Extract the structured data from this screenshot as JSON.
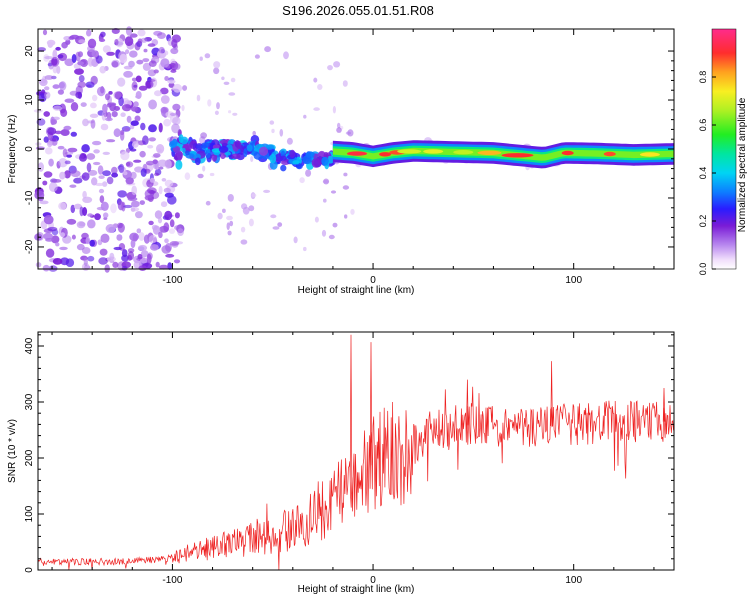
{
  "title": "S196.2026.055.01.51.R08",
  "chart_data": [
    {
      "type": "heatmap",
      "name": "spectrogram",
      "xlabel": "Height of straight line (km)",
      "ylabel": "Frequency (Hz)",
      "xlim": [
        -167,
        150
      ],
      "ylim": [
        -24.5,
        24.5
      ],
      "xticks": [
        -100,
        0,
        100
      ],
      "yticks": [
        20,
        10,
        0,
        -10,
        -20
      ],
      "xtick_labels": [
        "-100",
        "0",
        "100"
      ],
      "ytick_labels": [
        "20",
        "10",
        "0",
        "-10",
        "-20"
      ],
      "grid": false,
      "colorbar": {
        "label": "Normalized spectral amplitude",
        "range": [
          0,
          1
        ],
        "ticks": [
          0.0,
          0.2,
          0.4,
          0.6,
          0.8
        ],
        "tick_labels": [
          "0.0",
          "0.2",
          "0.4",
          "0.6",
          "0.8"
        ]
      },
      "regions": [
        {
          "x_range": [
            -167,
            -100
          ],
          "description_value": "broadband noise",
          "amplitude": [
            0.05,
            0.22
          ]
        },
        {
          "x_range": [
            -100,
            -20
          ],
          "center_hz": [
            -5,
            5
          ],
          "amplitude": [
            0.15,
            0.4
          ]
        },
        {
          "x_range": [
            -20,
            150
          ],
          "center_hz": 0,
          "amplitude": [
            0.3,
            1.0
          ]
        }
      ],
      "ridge": [
        {
          "x": -20,
          "f": -0.5
        },
        {
          "x": -10,
          "f": -0.8
        },
        {
          "x": 0,
          "f": -1.5
        },
        {
          "x": 10,
          "f": -0.8
        },
        {
          "x": 20,
          "f": -0.4
        },
        {
          "x": 40,
          "f": -0.6
        },
        {
          "x": 60,
          "f": -0.8
        },
        {
          "x": 75,
          "f": -1.4
        },
        {
          "x": 85,
          "f": -1.8
        },
        {
          "x": 95,
          "f": -0.8
        },
        {
          "x": 110,
          "f": -0.9
        },
        {
          "x": 130,
          "f": -1.2
        },
        {
          "x": 150,
          "f": -1.0
        }
      ]
    },
    {
      "type": "line",
      "name": "snr",
      "xlabel": "Height of straight line (km)",
      "ylabel": "SNR (10 * v/v)",
      "xlim": [
        -167,
        150
      ],
      "ylim": [
        0,
        425
      ],
      "xticks": [
        -100,
        0,
        100
      ],
      "yticks": [
        0,
        100,
        200,
        300,
        400
      ],
      "xtick_labels": [
        "-100",
        "0",
        "100"
      ],
      "ytick_labels": [
        "0",
        "100",
        "200",
        "300",
        "400"
      ],
      "grid": false,
      "color": "#ee2222",
      "series": [
        {
          "name": "SNR",
          "x": [
            -167,
            -150,
            -130,
            -110,
            -100,
            -90,
            -80,
            -70,
            -60,
            -50,
            -40,
            -30,
            -20,
            -15,
            -10,
            -5,
            0,
            5,
            10,
            15,
            20,
            30,
            40,
            60,
            80,
            100,
            120,
            140,
            150
          ],
          "y": [
            15,
            15,
            15,
            18,
            22,
            32,
            40,
            48,
            55,
            62,
            75,
            90,
            120,
            150,
            160,
            175,
            190,
            205,
            210,
            205,
            225,
            250,
            260,
            255,
            255,
            260,
            265,
            265,
            265
          ]
        }
      ],
      "peaks": [
        {
          "x": -11,
          "y": 420
        },
        {
          "x": -1,
          "y": 407
        },
        {
          "x": 47,
          "y": 340
        },
        {
          "x": 89,
          "y": 373
        },
        {
          "x": 145,
          "y": 325
        }
      ]
    }
  ]
}
